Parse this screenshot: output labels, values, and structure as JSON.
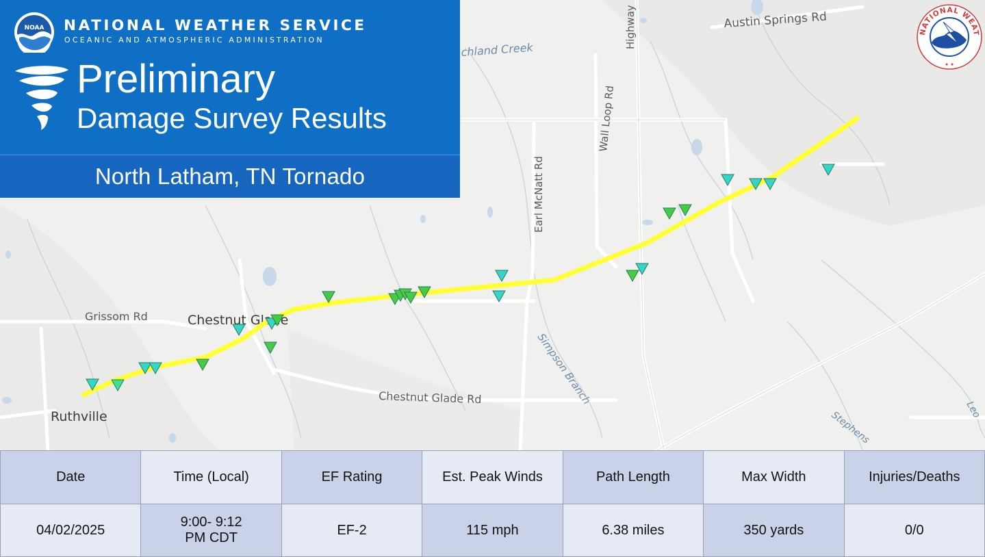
{
  "header": {
    "agency_name": "NATIONAL WEATHER SERVICE",
    "agency_sub": "OCEANIC AND ATMOSPHERIC ADMINISTRATION",
    "noaa_logo_text": "NOAA",
    "title_main": "Preliminary",
    "title_sub": "Damage Survey Results",
    "event_name": "North Latham, TN Tornado",
    "colors": {
      "header_bg": "#0e6fc4",
      "banner_bg": "#1666c0"
    }
  },
  "nws_logo": {
    "text": "NATIONAL WEATHER SERVICE"
  },
  "map": {
    "towns": [
      "Chestnut Glade",
      "Ruthville"
    ],
    "roads": [
      "Austin Springs Rd",
      "Highway",
      "Wall Loop Rd",
      "Earl McNatt Rd",
      "Grissom Rd",
      "Chestnut Glade Rd"
    ],
    "waterways": [
      "chland Creek",
      "Simpson Branch",
      "Stephens",
      "Leo"
    ],
    "track": {
      "color": "#ffff33",
      "icon": "tornado-path-line"
    },
    "damage_points": {
      "icon": "damage-point-triangle-icon",
      "colors": [
        "#3ee08a",
        "#33d6c9",
        "#44cc44"
      ]
    }
  },
  "summary": {
    "headers": [
      "Date",
      "Time (Local)",
      "EF Rating",
      "Est. Peak Winds",
      "Path Length",
      "Max Width",
      "Injuries/Deaths"
    ],
    "values": [
      "04/02/2025",
      "9:00- 9:12 PM CDT",
      "EF-2",
      "115 mph",
      "6.38 miles",
      "350 yards",
      "0/0"
    ]
  }
}
